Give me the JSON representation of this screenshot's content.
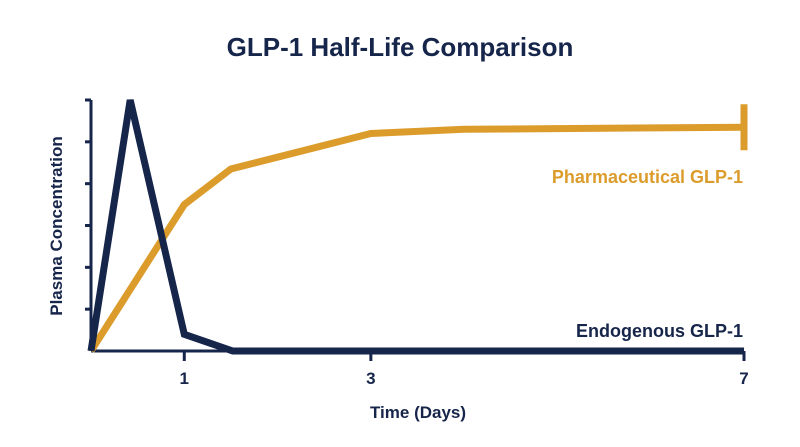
{
  "chart_data": {
    "type": "line",
    "title": "GLP-1 Half-Life Comparison",
    "xlabel": "Time (Days)",
    "ylabel": "Plasma Concentration",
    "xlim": [
      0,
      7
    ],
    "ylim": [
      0,
      6
    ],
    "x_ticks": [
      1,
      3,
      7
    ],
    "y_tick_count": 6,
    "grid": false,
    "series": [
      {
        "name": "Endogenous GLP-1",
        "color": "#16254a",
        "x": [
          0,
          0.42,
          1,
          1.52,
          2.5,
          3,
          7
        ],
        "y": [
          0,
          6,
          0.4,
          0,
          0,
          0,
          0
        ]
      },
      {
        "name": "Pharmaceutical GLP-1",
        "color": "#dc9c2c",
        "x": [
          0,
          1,
          1.5,
          3,
          4,
          7
        ],
        "y": [
          0,
          3.5,
          4.35,
          5.2,
          5.3,
          5.35
        ]
      }
    ]
  }
}
